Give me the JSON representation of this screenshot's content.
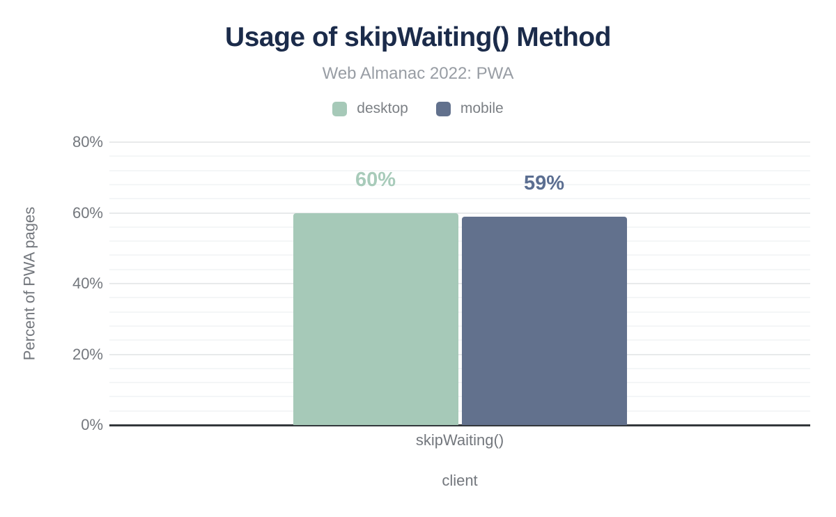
{
  "header": {
    "title": "Usage of skipWaiting() Method",
    "subtitle": "Web Almanac 2022: PWA"
  },
  "legend": {
    "items": [
      {
        "label": "desktop",
        "color": "#a6c9b8"
      },
      {
        "label": "mobile",
        "color": "#62718d"
      }
    ]
  },
  "chart_data": {
    "type": "bar",
    "title": "Usage of skipWaiting() Method",
    "subtitle": "Web Almanac 2022: PWA",
    "categories": [
      "skipWaiting()"
    ],
    "series": [
      {
        "name": "desktop",
        "values": [
          60
        ],
        "labels": [
          "60%"
        ],
        "color": "#a6c9b8",
        "label_color": "#a8cbba"
      },
      {
        "name": "mobile",
        "values": [
          59
        ],
        "labels": [
          "59%"
        ],
        "color": "#62718d",
        "label_color": "#5b6e91"
      }
    ],
    "xlabel": "client",
    "ylabel": "Percent of PWA pages",
    "ylim": [
      0,
      80
    ],
    "yticks": [
      0,
      20,
      40,
      60,
      80
    ],
    "ytick_labels": [
      "0%",
      "20%",
      "40%",
      "60%",
      "80%"
    ],
    "minor_tick_step": 4,
    "grid": "horizontal-major-and-minor",
    "legend_position": "top"
  },
  "colors": {
    "title": "#1b2b4a",
    "subtitle": "#989da4",
    "axis_text": "#73777d",
    "axis_line": "#33373b",
    "grid_major": "#e8eaeb",
    "grid_minor": "#f4f6f7",
    "background": "#ffffff"
  }
}
